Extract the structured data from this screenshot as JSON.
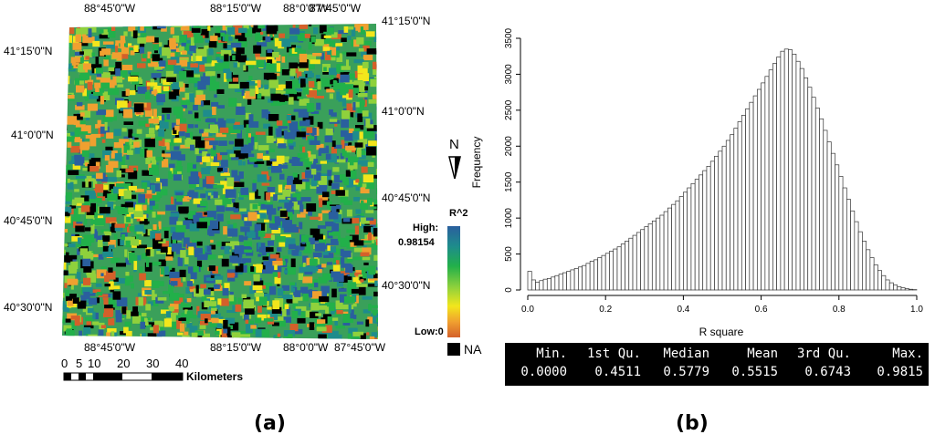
{
  "map": {
    "top_lon_labels": [
      "88°45'0\"W",
      "88°15'0\"W",
      "88°0'0\"W",
      "87°45'0\"W"
    ],
    "bottom_lon_labels": [
      "88°45'0\"W",
      "88°15'0\"W",
      "88°0'0\"W",
      "87°45'0\"W"
    ],
    "left_lat_labels": [
      "41°15'0\"N",
      "41°0'0\"N",
      "40°45'0\"N",
      "40°30'0\"N"
    ],
    "right_lat_labels": [
      "41°15'0\"N",
      "41°0'0\"N",
      "40°45'0\"N",
      "40°30'0\"N"
    ],
    "north_label": "N",
    "legend": {
      "title": "R^2",
      "high_label": "High:",
      "high_value": "0.98154",
      "low_label": "Low:0",
      "na_label": "NA",
      "colors": [
        "#2a5f9e",
        "#1e8c8c",
        "#22b04a",
        "#8fd13c",
        "#f2e61c",
        "#f0a030",
        "#d4602a"
      ],
      "na_color": "#000000"
    },
    "scalebar": {
      "ticks": [
        "0",
        "5",
        "10",
        "20",
        "30",
        "40"
      ],
      "unit": "Kilometers"
    }
  },
  "chart_data": {
    "type": "bar",
    "title": "",
    "xlabel": "R square",
    "ylabel": "Frequency",
    "xlim": [
      0.0,
      1.0
    ],
    "ylim": [
      0,
      3500
    ],
    "xticks": [
      "0.0",
      "0.2",
      "0.4",
      "0.6",
      "0.8",
      "1.0"
    ],
    "yticks": [
      "0",
      "500",
      "1000",
      "1500",
      "2000",
      "2500",
      "3000",
      "3500"
    ],
    "bin_width": 0.01,
    "values": [
      260,
      140,
      110,
      130,
      150,
      160,
      180,
      200,
      220,
      240,
      260,
      280,
      300,
      320,
      340,
      370,
      400,
      420,
      450,
      480,
      510,
      540,
      570,
      600,
      640,
      680,
      720,
      760,
      800,
      840,
      880,
      920,
      960,
      1000,
      1040,
      1090,
      1140,
      1190,
      1240,
      1300,
      1360,
      1420,
      1480,
      1540,
      1600,
      1660,
      1720,
      1790,
      1860,
      1930,
      2000,
      2080,
      2160,
      2250,
      2340,
      2430,
      2520,
      2610,
      2700,
      2790,
      2880,
      2970,
      3060,
      3150,
      3240,
      3320,
      3350,
      3340,
      3280,
      3180,
      3080,
      2950,
      2820,
      2680,
      2530,
      2380,
      2220,
      2060,
      1900,
      1740,
      1580,
      1420,
      1260,
      1100,
      950,
      810,
      680,
      560,
      450,
      350,
      270,
      200,
      140,
      100,
      70,
      45,
      30,
      18,
      10,
      5,
      0
    ]
  },
  "stats": {
    "headers": [
      "Min.",
      "1st Qu.",
      "Median",
      "Mean",
      "3rd Qu.",
      "Max."
    ],
    "values": [
      "0.0000",
      "0.4511",
      "0.5779",
      "0.5515",
      "0.6743",
      "0.9815"
    ]
  },
  "labels": {
    "panel_a": "(a)",
    "panel_b": "(b)"
  }
}
